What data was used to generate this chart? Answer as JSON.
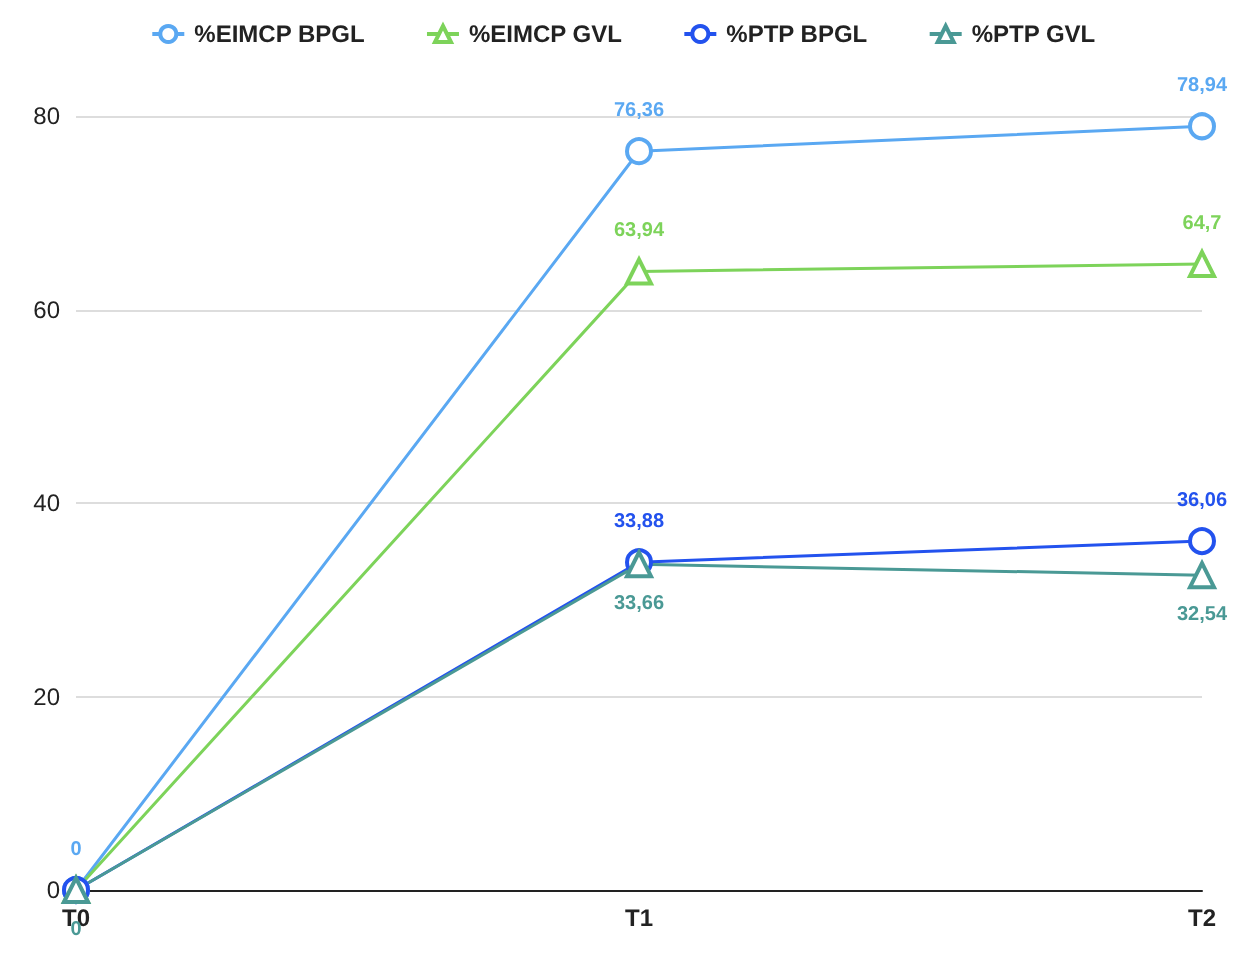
{
  "chart_data": {
    "type": "line",
    "categories": [
      "T0",
      "T1",
      "T2"
    ],
    "series": [
      {
        "name": "%EIMCP BPGL",
        "color": "#5aa8f2",
        "marker": "circle",
        "values": [
          0,
          76.36,
          78.94
        ],
        "value_labels": [
          "0",
          "76,36",
          "78,94"
        ]
      },
      {
        "name": "%EIMCP GVL",
        "color": "#7dd35a",
        "marker": "triangle",
        "values": [
          0,
          63.94,
          64.7
        ],
        "value_labels": [
          null,
          "63,94",
          "64,7"
        ]
      },
      {
        "name": "%PTP BPGL",
        "color": "#2352ee",
        "marker": "circle",
        "values": [
          0,
          33.88,
          36.06
        ],
        "value_labels": [
          null,
          "33,88",
          "36,06"
        ]
      },
      {
        "name": "%PTP GVL",
        "color": "#4a9995",
        "marker": "triangle",
        "values": [
          0,
          33.66,
          32.54
        ],
        "value_labels": [
          "0",
          "33,66",
          "32,54"
        ]
      }
    ],
    "ylim": [
      0,
      80
    ],
    "yticks": [
      0,
      20,
      40,
      60,
      80
    ],
    "grid": "y",
    "legend": "top"
  }
}
